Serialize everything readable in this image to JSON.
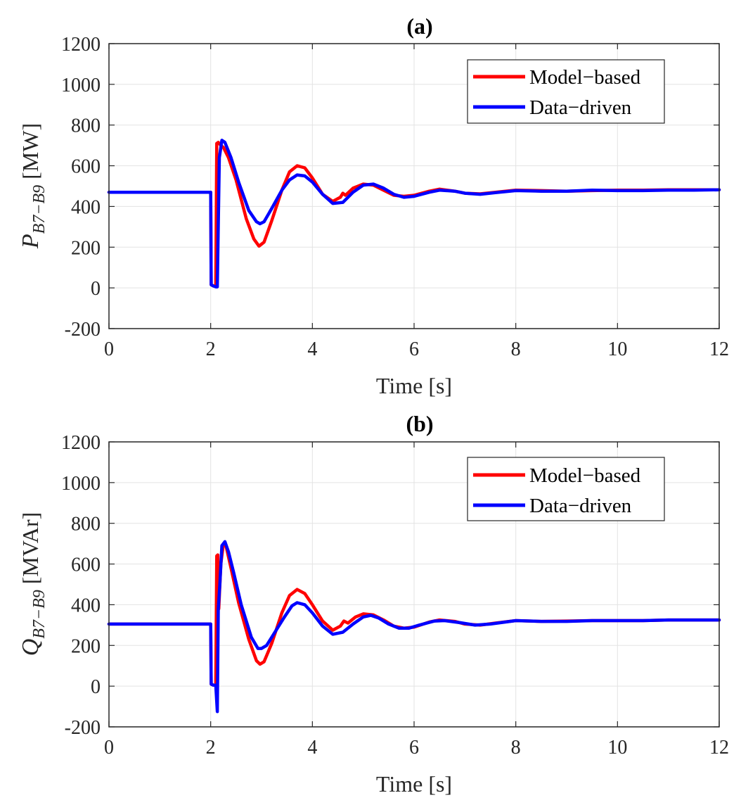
{
  "chart_data": [
    {
      "type": "line",
      "title": "(a)",
      "xlabel": "Time [s]",
      "ylabel_symbol": "P",
      "ylabel_subscript": "B7−B9",
      "ylabel_unit": "[MW]",
      "xlim": [
        0,
        12
      ],
      "ylim": [
        -200,
        1200
      ],
      "xticks": [
        "0",
        "2",
        "4",
        "6",
        "8",
        "10",
        "12"
      ],
      "yticks": [
        "-200",
        "0",
        "200",
        "400",
        "600",
        "800",
        "1000",
        "1200"
      ],
      "grid": true,
      "legend_position": "top-right",
      "series": [
        {
          "name": "Model−based",
          "color": "#ff0000",
          "x": [
            0,
            2.0,
            2.01,
            2.05,
            2.1,
            2.12,
            2.15,
            2.2,
            2.25,
            2.35,
            2.5,
            2.7,
            2.85,
            2.95,
            3.05,
            3.2,
            3.4,
            3.55,
            3.7,
            3.85,
            4.0,
            4.2,
            4.4,
            4.55,
            4.6,
            4.65,
            4.8,
            5.0,
            5.2,
            5.4,
            5.6,
            5.8,
            6.0,
            6.3,
            6.5,
            6.8,
            7.0,
            7.3,
            7.6,
            8.0,
            8.5,
            9.0,
            9.5,
            10.0,
            10.5,
            11.0,
            11.5,
            12.0
          ],
          "y": [
            470,
            470,
            15,
            10,
            10,
            710,
            715,
            700,
            690,
            640,
            530,
            340,
            240,
            205,
            225,
            330,
            480,
            570,
            600,
            590,
            540,
            460,
            425,
            445,
            465,
            455,
            490,
            510,
            505,
            480,
            455,
            450,
            455,
            475,
            485,
            475,
            465,
            462,
            470,
            480,
            478,
            475,
            478,
            480,
            480,
            482,
            482,
            482
          ]
        },
        {
          "name": "Data−driven",
          "color": "#0000ff",
          "x": [
            0,
            2.0,
            2.01,
            2.05,
            2.1,
            2.13,
            2.17,
            2.22,
            2.28,
            2.4,
            2.55,
            2.75,
            2.9,
            2.97,
            3.05,
            3.2,
            3.4,
            3.55,
            3.7,
            3.85,
            4.0,
            4.2,
            4.4,
            4.6,
            4.8,
            5.0,
            5.2,
            5.4,
            5.6,
            5.8,
            6.0,
            6.3,
            6.5,
            6.8,
            7.0,
            7.3,
            7.6,
            8.0,
            8.5,
            9.0,
            9.5,
            10.0,
            10.5,
            11.0,
            11.5,
            12.0
          ],
          "y": [
            470,
            470,
            15,
            10,
            5,
            5,
            640,
            725,
            715,
            640,
            520,
            380,
            325,
            315,
            325,
            390,
            480,
            530,
            555,
            550,
            520,
            460,
            415,
            420,
            470,
            505,
            510,
            490,
            460,
            445,
            450,
            470,
            480,
            475,
            465,
            460,
            468,
            478,
            475,
            475,
            480,
            478,
            478,
            480,
            480,
            482
          ]
        }
      ]
    },
    {
      "type": "line",
      "title": "(b)",
      "xlabel": "Time [s]",
      "ylabel_symbol": "Q",
      "ylabel_subscript": "B7−B9",
      "ylabel_unit": "[MVAr]",
      "xlim": [
        0,
        12
      ],
      "ylim": [
        -200,
        1200
      ],
      "xticks": [
        "0",
        "2",
        "4",
        "6",
        "8",
        "10",
        "12"
      ],
      "yticks": [
        "-200",
        "0",
        "200",
        "400",
        "600",
        "800",
        "1000",
        "1200"
      ],
      "grid": true,
      "legend_position": "top-right",
      "series": [
        {
          "name": "Model−based",
          "color": "#ff0000",
          "x": [
            0,
            2.0,
            2.01,
            2.05,
            2.1,
            2.12,
            2.14,
            2.16,
            2.2,
            2.25,
            2.3,
            2.4,
            2.55,
            2.75,
            2.9,
            2.97,
            3.05,
            3.2,
            3.4,
            3.55,
            3.7,
            3.85,
            4.0,
            4.2,
            4.4,
            4.55,
            4.62,
            4.7,
            4.85,
            5.0,
            5.2,
            5.4,
            5.6,
            5.8,
            6.0,
            6.3,
            6.5,
            6.8,
            7.0,
            7.3,
            7.6,
            8.0,
            8.5,
            9.0,
            9.5,
            10.0,
            10.5,
            11.0,
            11.5,
            12.0
          ],
          "y": [
            305,
            305,
            10,
            5,
            5,
            640,
            645,
            380,
            600,
            700,
            690,
            580,
            410,
            230,
            125,
            108,
            120,
            210,
            360,
            445,
            475,
            455,
            400,
            320,
            275,
            295,
            320,
            310,
            340,
            355,
            350,
            325,
            295,
            285,
            290,
            315,
            325,
            318,
            305,
            300,
            310,
            322,
            318,
            320,
            322,
            322,
            322,
            325,
            325,
            325
          ]
        },
        {
          "name": "Data−driven",
          "color": "#0000ff",
          "x": [
            0,
            2.0,
            2.01,
            2.05,
            2.1,
            2.13,
            2.15,
            2.18,
            2.22,
            2.28,
            2.35,
            2.45,
            2.6,
            2.8,
            2.93,
            3.0,
            3.1,
            3.25,
            3.45,
            3.6,
            3.7,
            3.85,
            4.0,
            4.2,
            4.4,
            4.6,
            4.8,
            5.0,
            5.15,
            5.3,
            5.5,
            5.7,
            5.9,
            6.1,
            6.4,
            6.6,
            6.9,
            7.2,
            7.5,
            8.0,
            8.5,
            9.0,
            9.5,
            10.0,
            10.5,
            11.0,
            11.5,
            12.0
          ],
          "y": [
            305,
            305,
            10,
            5,
            5,
            -125,
            380,
            500,
            690,
            710,
            660,
            560,
            400,
            240,
            185,
            185,
            200,
            260,
            340,
            395,
            410,
            400,
            360,
            295,
            255,
            265,
            305,
            340,
            348,
            335,
            305,
            285,
            285,
            300,
            320,
            322,
            312,
            300,
            305,
            322,
            318,
            318,
            322,
            322,
            322,
            325,
            325,
            325
          ]
        }
      ]
    }
  ]
}
